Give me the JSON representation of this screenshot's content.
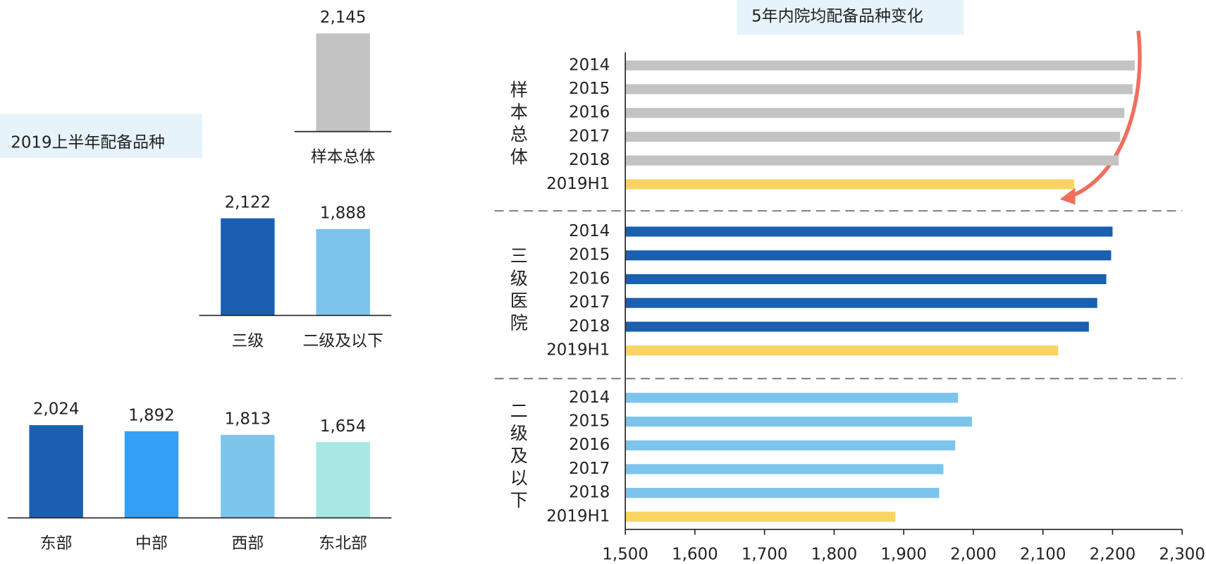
{
  "chart_data": [
    {
      "type": "bar",
      "title": "2019上半年配备品种",
      "categories": [
        "样本总体"
      ],
      "values": [
        2145
      ],
      "value_labels": [
        "2,145"
      ],
      "colors": [
        "#c3c3c3"
      ]
    },
    {
      "type": "bar",
      "categories": [
        "三级",
        "二级及以下"
      ],
      "values": [
        2122,
        1888
      ],
      "value_labels": [
        "2,122",
        "1,888"
      ],
      "colors": [
        "#1a5fb0",
        "#7dc4ec"
      ]
    },
    {
      "type": "bar",
      "categories": [
        "东部",
        "中部",
        "西部",
        "东北部"
      ],
      "values": [
        2024,
        1892,
        1813,
        1654
      ],
      "value_labels": [
        "2,024",
        "1,892",
        "1,813",
        "1,654"
      ],
      "colors": [
        "#1a5fb0",
        "#33a0f5",
        "#7dc4ec",
        "#a8e8e4"
      ]
    },
    {
      "type": "hbar",
      "title": "5年内院均配备品种变化",
      "highlight_color": "#f9d462",
      "groups": [
        {
          "name": "样本总体",
          "color": "#c3c3c3",
          "categories": [
            "2014",
            "2015",
            "2016",
            "2017",
            "2018",
            "2019H1"
          ],
          "values": [
            2232,
            2229,
            2217,
            2211,
            2209,
            2145
          ]
        },
        {
          "name": "三级医院",
          "color": "#1a5fb0",
          "categories": [
            "2014",
            "2015",
            "2016",
            "2017",
            "2018",
            "2019H1"
          ],
          "values": [
            2200,
            2198,
            2191,
            2178,
            2166,
            2122
          ]
        },
        {
          "name": "二级及以下",
          "color": "#7dc4ec",
          "categories": [
            "2014",
            "2015",
            "2016",
            "2017",
            "2018",
            "2019H1"
          ],
          "values": [
            1978,
            1998,
            1974,
            1957,
            1951,
            1888
          ]
        }
      ],
      "xlim": [
        1500,
        2300
      ],
      "xticks": [
        {
          "value": 1500,
          "label": "1,500"
        },
        {
          "value": 1600,
          "label": "1,600"
        },
        {
          "value": 1700,
          "label": "1,700"
        },
        {
          "value": 1800,
          "label": "1,800"
        },
        {
          "value": 1900,
          "label": "1,900"
        },
        {
          "value": 2000,
          "label": "2,000"
        },
        {
          "value": 2100,
          "label": "2,100"
        },
        {
          "value": 2200,
          "label": "2,200"
        },
        {
          "value": 2300,
          "label": "2,300"
        }
      ]
    }
  ]
}
